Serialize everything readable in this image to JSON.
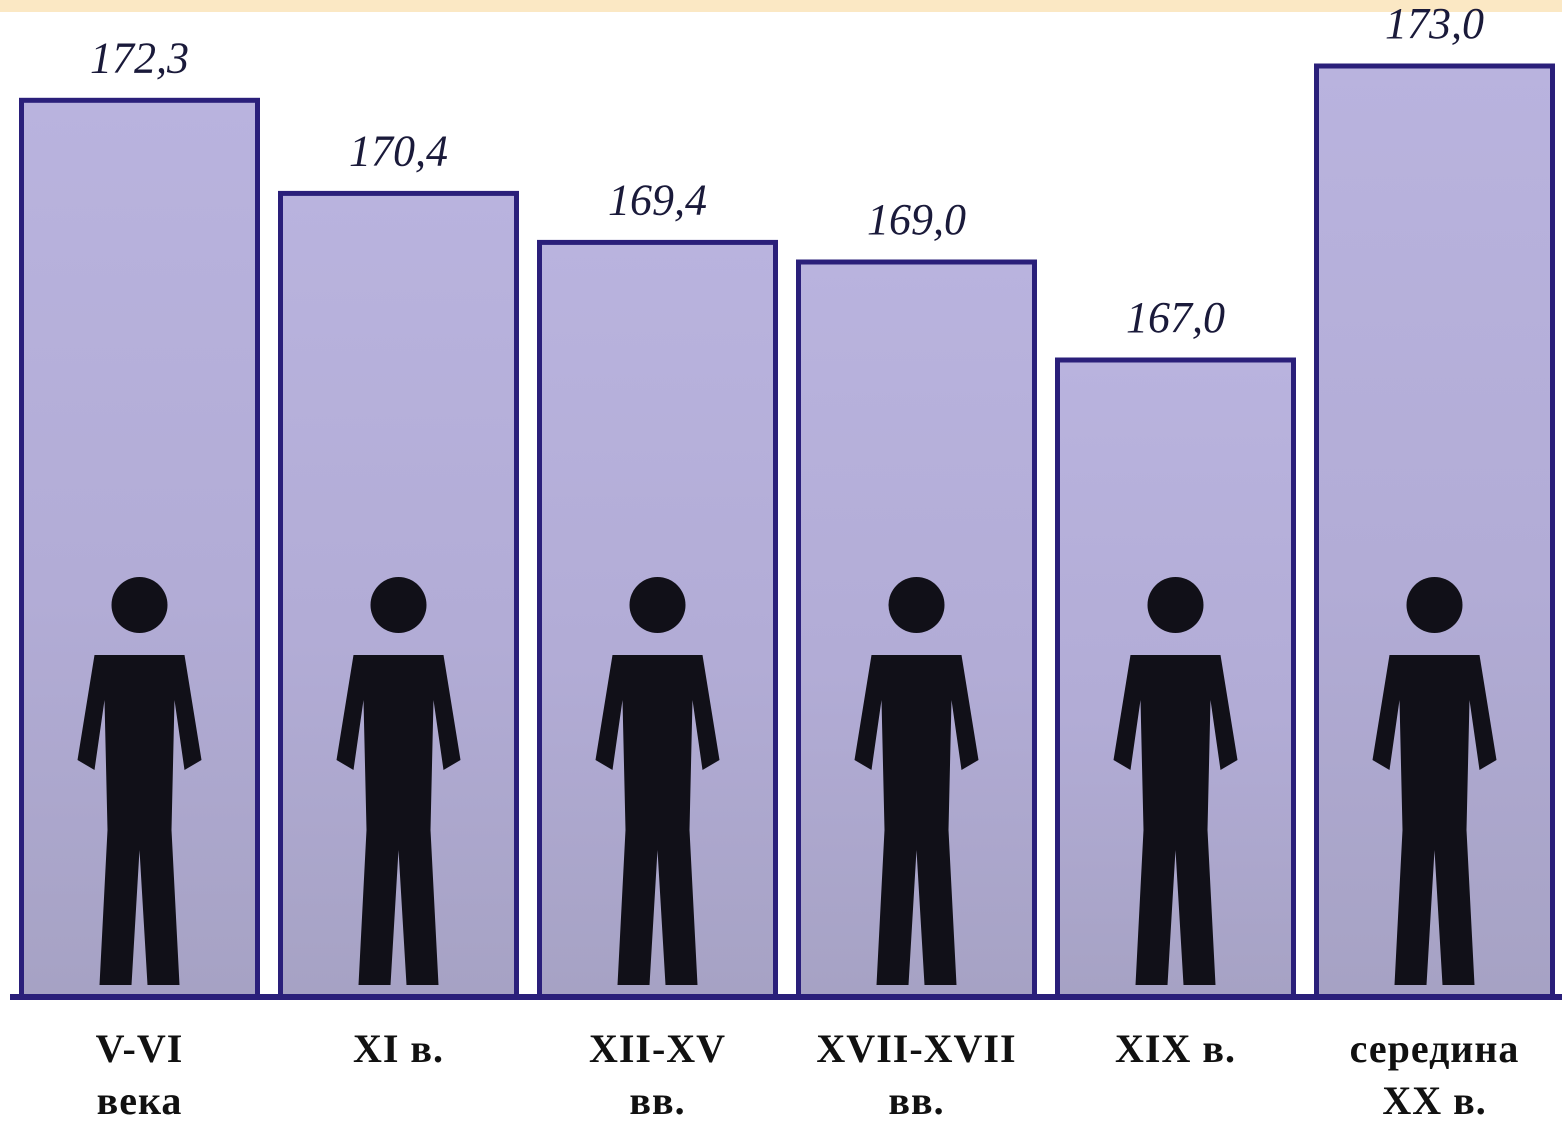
{
  "chart_data": {
    "type": "bar",
    "categories": [
      [
        "V-VI",
        "века"
      ],
      [
        "XI в."
      ],
      [
        "XII-XV",
        "вв."
      ],
      [
        "XVII-XVII",
        "вв."
      ],
      [
        "XIX в."
      ],
      [
        "середина",
        "XX в."
      ]
    ],
    "values": [
      172.3,
      170.4,
      169.4,
      169.0,
      167.0,
      173.0
    ],
    "value_labels": [
      "172,3",
      "170,4",
      "169,4",
      "169,0",
      "167,0",
      "173,0"
    ],
    "color": "#b9b3de",
    "edge_color": "#2a1f7a",
    "ylim": [
      154,
      174
    ]
  }
}
